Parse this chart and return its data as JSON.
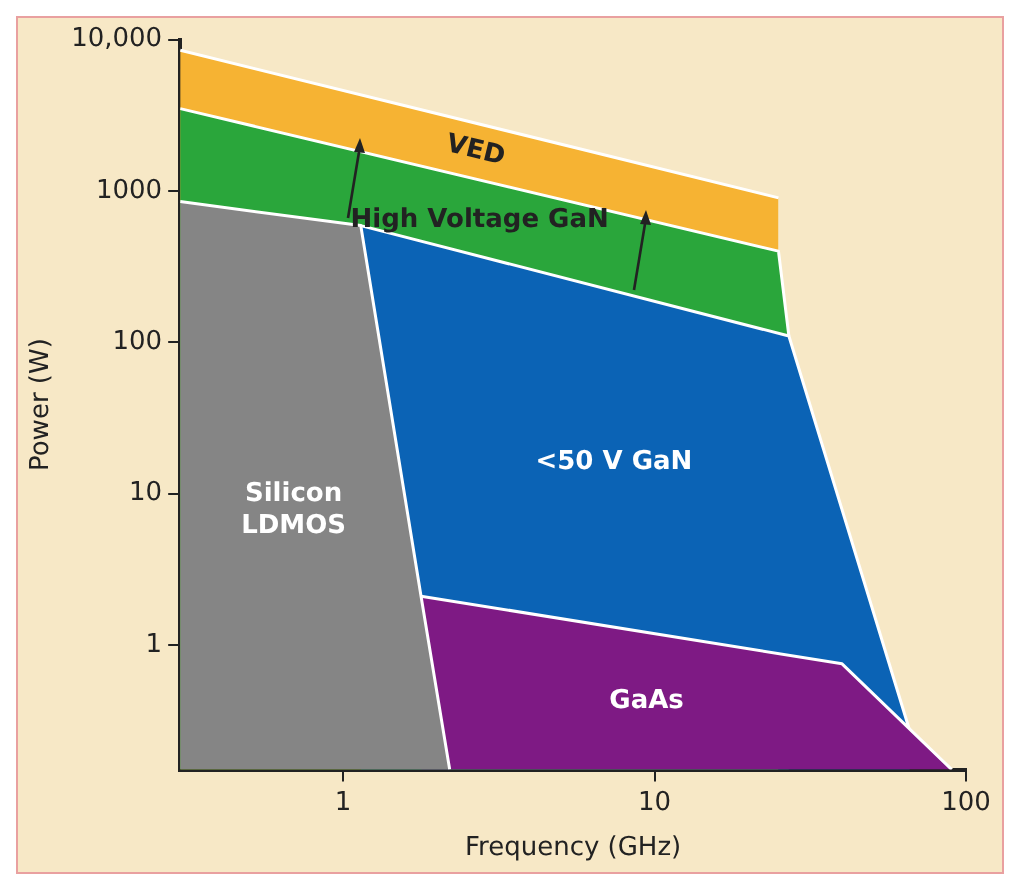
{
  "chart_data": {
    "type": "area",
    "xlabel": "Frequency (GHz)",
    "ylabel": "Power (W)",
    "log": "xy",
    "grid": false,
    "legend": false,
    "xlim": [
      0.3,
      100
    ],
    "xticks": [
      1,
      10,
      100
    ],
    "ylim": [
      0.15,
      10000
    ],
    "yticks": [
      1,
      10,
      100,
      1000,
      {
        "value": 10000,
        "label": "10,000"
      }
    ],
    "series": [
      {
        "name": "VED",
        "color": "#f6b333",
        "x": [
          0.3,
          25
        ],
        "values": [
          8500,
          900
        ]
      },
      {
        "name": "High Voltage GaN",
        "color": "#2aa63b",
        "x": [
          0.3,
          25,
          27
        ],
        "values": [
          3500,
          400,
          110
        ]
      },
      {
        "name": "<50 V GaN",
        "color": "#0b63b5",
        "x": [
          1.14,
          27,
          66
        ],
        "values": [
          590,
          110,
          0.27
        ]
      },
      {
        "name": "GaAs",
        "color": "#7e1a84",
        "x": [
          1.78,
          40,
          90
        ],
        "values": [
          2.1,
          0.75,
          0.15
        ]
      },
      {
        "name": "Silicon LDMOS",
        "color": "#858585",
        "x": [
          0.3,
          1.14,
          1.78,
          2.2
        ],
        "values": [
          850,
          590,
          2.1,
          0.15
        ]
      }
    ]
  }
}
